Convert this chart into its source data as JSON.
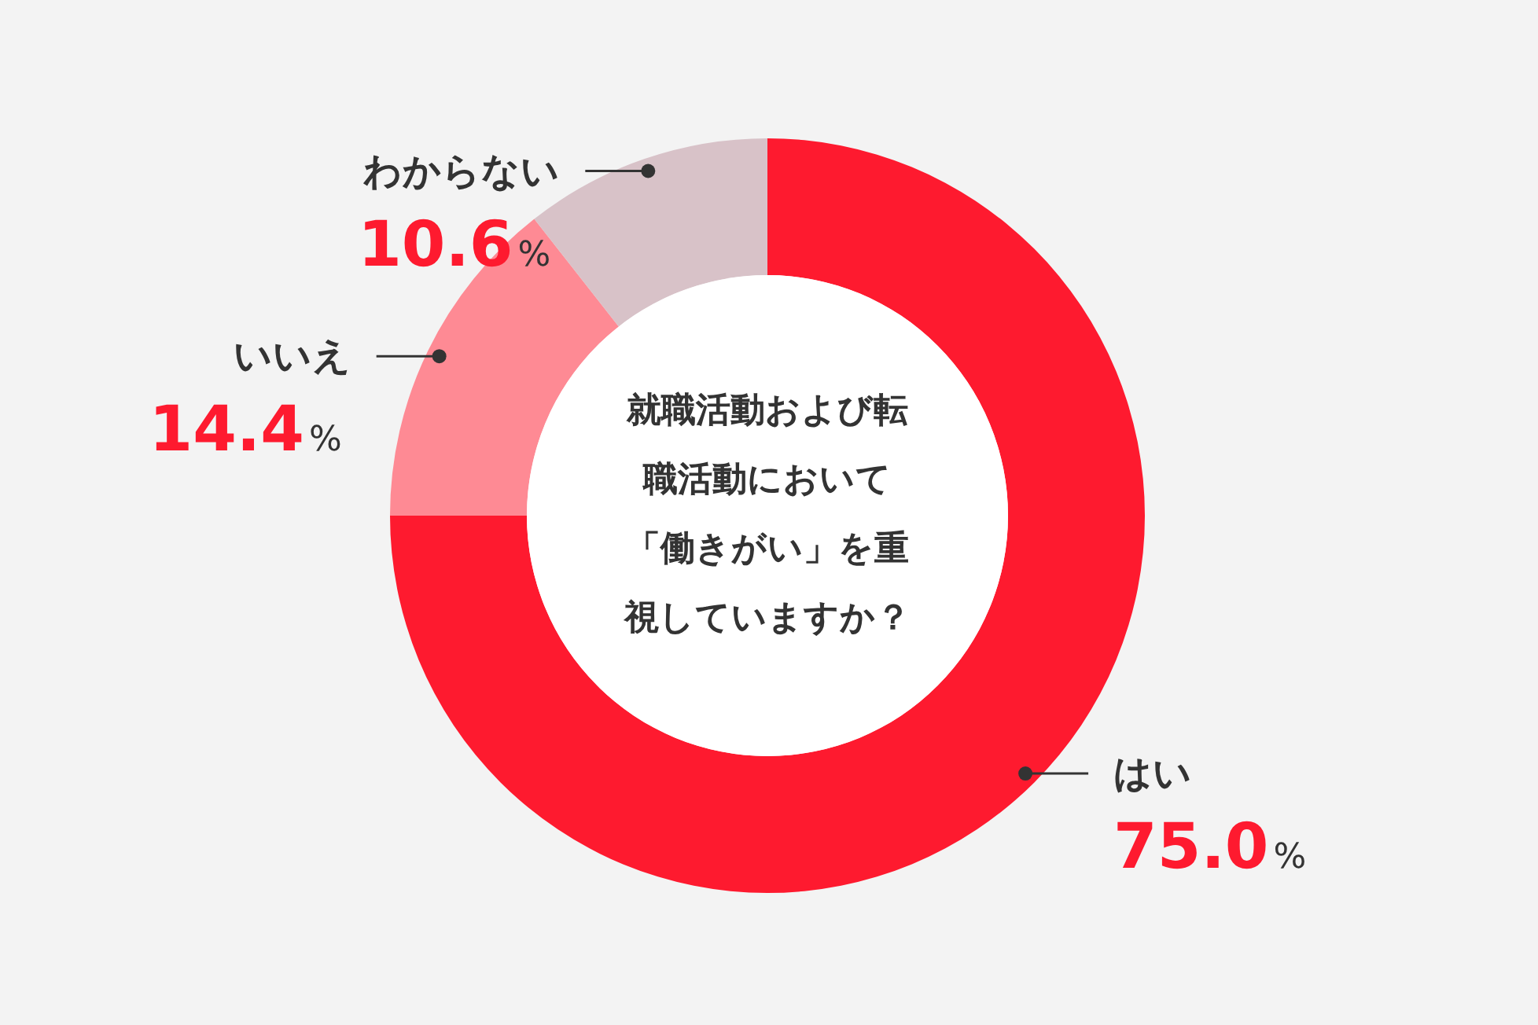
{
  "chart_data": {
    "type": "donut",
    "title": "就職活動および転職活動において「働きがい」を重視していますか？",
    "categories": [
      "はい",
      "いいえ",
      "わからない"
    ],
    "values": [
      75.0,
      14.4,
      10.6
    ],
    "colors": [
      "#fe1a2f",
      "#fe8a94",
      "#d8c2c8"
    ],
    "value_labels": [
      "75.0%",
      "14.4%",
      "10.6%"
    ]
  }
}
